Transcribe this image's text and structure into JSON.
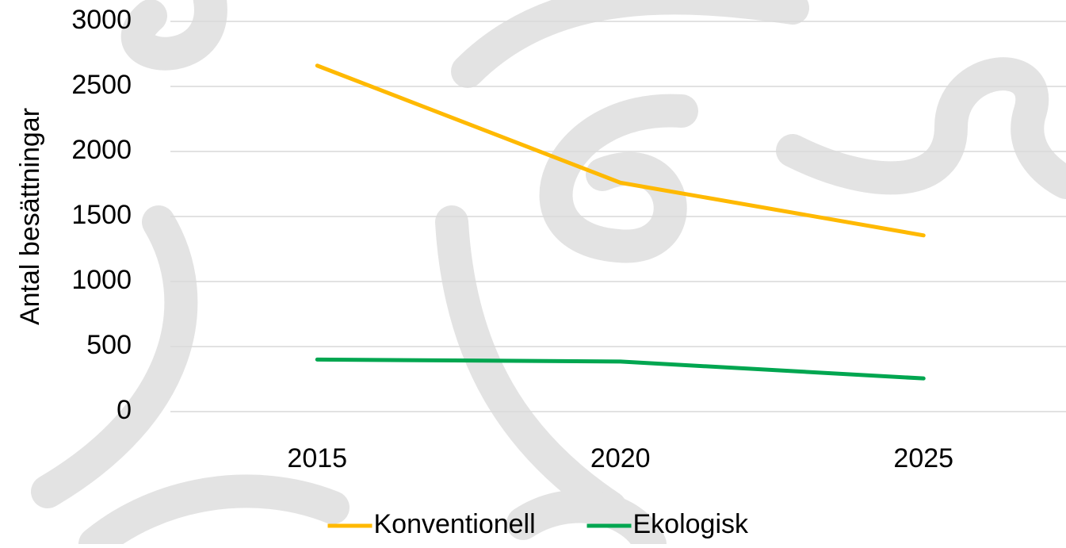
{
  "chart_data": {
    "type": "line",
    "y_label": "Antal besättningar",
    "categories": [
      "2015",
      "2020",
      "2025"
    ],
    "series": [
      {
        "name": "Konventionell",
        "color": "#ffb900",
        "values": [
          2660,
          1760,
          1355
        ]
      },
      {
        "name": "Ekologisk",
        "color": "#00a650",
        "values": [
          400,
          385,
          255
        ]
      }
    ],
    "ylim": [
      0,
      3000
    ],
    "yticks": [
      0,
      500,
      1000,
      1500,
      2000,
      2500,
      3000
    ],
    "grid": true,
    "legend": "bottom"
  }
}
